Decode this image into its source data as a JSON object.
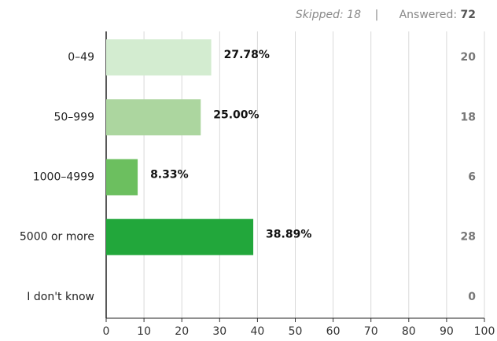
{
  "header": {
    "skipped_label": "Skipped:",
    "skipped": 18,
    "separator": "|",
    "answered_label": "Answered:",
    "answered": 72
  },
  "chart_data": {
    "type": "bar",
    "orientation": "horizontal",
    "categories": [
      "0–49",
      "50–999",
      "1000–4999",
      "5000 or more",
      "I don't know"
    ],
    "values": [
      27.78,
      25.0,
      8.33,
      38.89,
      0
    ],
    "value_labels": [
      "27.78%",
      "25.00%",
      "8.33%",
      "38.89%",
      null
    ],
    "counts": [
      20,
      18,
      6,
      28,
      0
    ],
    "colors": [
      "#d3ecd0",
      "#acd69f",
      "#6cbf5f",
      "#22a73b",
      "#22a73b"
    ],
    "xlim": [
      0,
      100
    ],
    "xticks": [
      0,
      10,
      20,
      30,
      40,
      50,
      60,
      70,
      80,
      90,
      100
    ],
    "grid": true
  }
}
